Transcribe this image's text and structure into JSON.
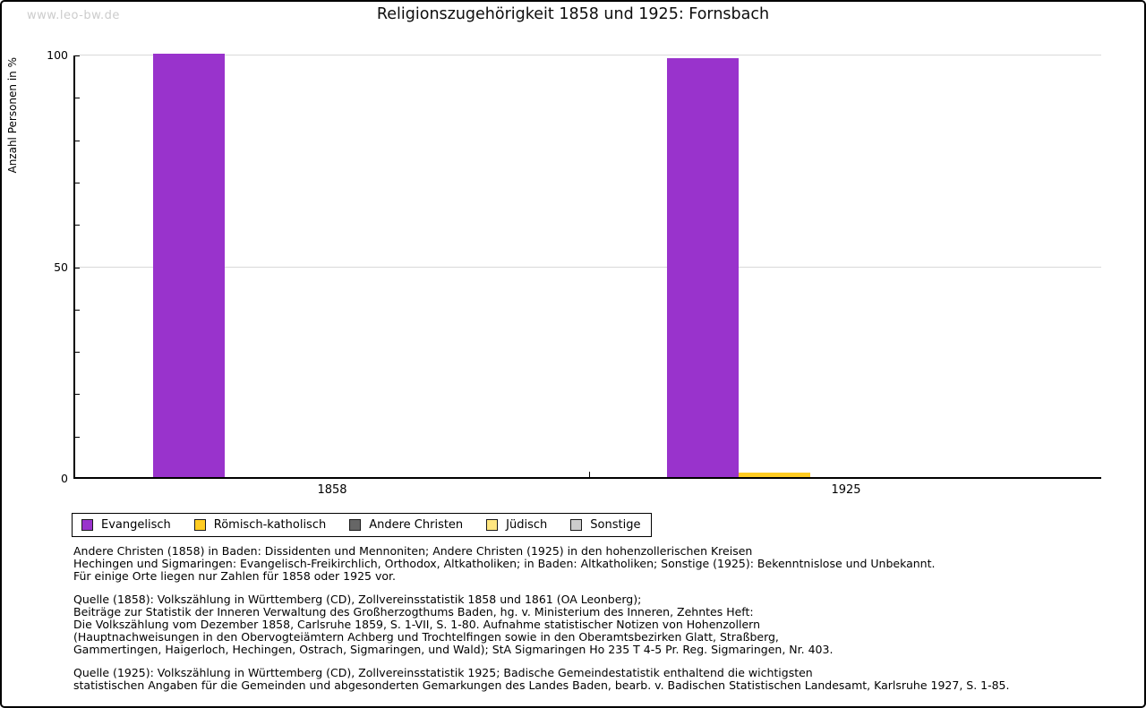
{
  "watermark": "www.leo-bw.de",
  "title": "Religionszugehörigkeit 1858 und 1925: Fornsbach",
  "chart_data": {
    "type": "bar",
    "title": "Religionszugehörigkeit 1858 und 1925: Fornsbach",
    "xlabel": "",
    "ylabel": "Anzahl Personen in %",
    "ylim": [
      0,
      100
    ],
    "yticks_major": [
      0,
      50,
      100
    ],
    "ytick_minor_step": 10,
    "grid_values": [
      50,
      100
    ],
    "grid": "horizontal-at-50-and-100",
    "legend_position": "bottom-left",
    "categories": [
      "1858",
      "1925"
    ],
    "series": [
      {
        "name": "Evangelisch",
        "color": "#9933cc",
        "values": [
          100,
          99
        ]
      },
      {
        "name": "Römisch-katholisch",
        "color": "#ffcc22",
        "values": [
          0,
          1
        ]
      },
      {
        "name": "Andere Christen",
        "color": "#666666",
        "values": [
          0,
          0
        ]
      },
      {
        "name": "Jüdisch",
        "color": "#ffe680",
        "values": [
          0,
          0
        ]
      },
      {
        "name": "Sonstige",
        "color": "#cccccc",
        "values": [
          0,
          0
        ]
      }
    ]
  },
  "footnotes": {
    "p1": [
      "Andere Christen (1858) in Baden: Dissidenten und Mennoniten; Andere Christen (1925) in den hohenzollerischen Kreisen",
      "Hechingen und Sigmaringen: Evangelisch-Freikirchlich, Orthodox, Altkatholiken; in Baden: Altkatholiken; Sonstige (1925): Bekenntnislose und Unbekannt.",
      "Für einige Orte liegen nur Zahlen für 1858 oder 1925 vor."
    ],
    "p2": [
      "Quelle (1858): Volkszählung in Württemberg (CD), Zollvereinsstatistik 1858 und 1861 (OA Leonberg);",
      "Beiträge zur Statistik der Inneren Verwaltung des Großherzogthums Baden, hg. v. Ministerium des Inneren, Zehntes Heft:",
      "Die Volkszählung vom Dezember 1858, Carlsruhe 1859, S. 1-VII, S. 1-80. Aufnahme statistischer Notizen von Hohenzollern",
      "(Hauptnachweisungen in den Obervogteiämtern Achberg und Trochtelfingen sowie in den Oberamtsbezirken Glatt, Straßberg,",
      "Gammertingen, Haigerloch, Hechingen, Ostrach, Sigmaringen, und Wald); StA Sigmaringen Ho 235 T 4-5 Pr. Reg. Sigmaringen, Nr. 403."
    ],
    "p3": [
      "Quelle (1925): Volkszählung in Württemberg (CD), Zollvereinsstatistik 1925; Badische Gemeindestatistik enthaltend die wichtigsten",
      "statistischen Angaben für die Gemeinden und abgesonderten Gemarkungen des Landes Baden, bearb. v. Badischen Statistischen Landesamt, Karlsruhe 1927, S. 1-85."
    ]
  }
}
